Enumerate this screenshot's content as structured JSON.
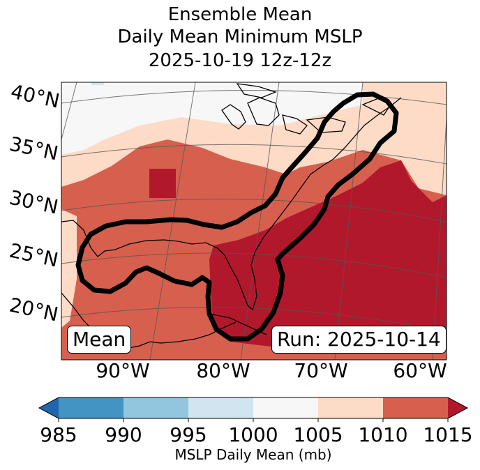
{
  "title": {
    "line1": "Ensemble Mean",
    "line2": "Daily Mean Minimum MSLP",
    "line3": "2025-10-19 12z-12z"
  },
  "map": {
    "latitude_labels": [
      "40°N",
      "35°N",
      "30°N",
      "25°N",
      "20°N"
    ],
    "longitude_labels": [
      "90°W",
      "80°W",
      "70°W",
      "60°W"
    ],
    "mean_label": "Mean",
    "run_label": "Run: 2025-10-14",
    "contour_color": "#000000"
  },
  "colorbar": {
    "label": "MSLP Daily Mean (mb)",
    "ticks": [
      "985",
      "990",
      "995",
      "1000",
      "1005",
      "1010",
      "1015"
    ],
    "bins": [
      {
        "range": "< 985",
        "color": "#2166ac"
      },
      {
        "range": "985-990",
        "color": "#4393c3"
      },
      {
        "range": "990-995",
        "color": "#92c5de"
      },
      {
        "range": "995-1000",
        "color": "#d1e5f0"
      },
      {
        "range": "1000-1005",
        "color": "#f7f7f7"
      },
      {
        "range": "1005-1010",
        "color": "#fddbc7"
      },
      {
        "range": "1010-1015",
        "color": "#d6604d"
      },
      {
        "range": "> 1015",
        "color": "#b2182b"
      }
    ]
  }
}
